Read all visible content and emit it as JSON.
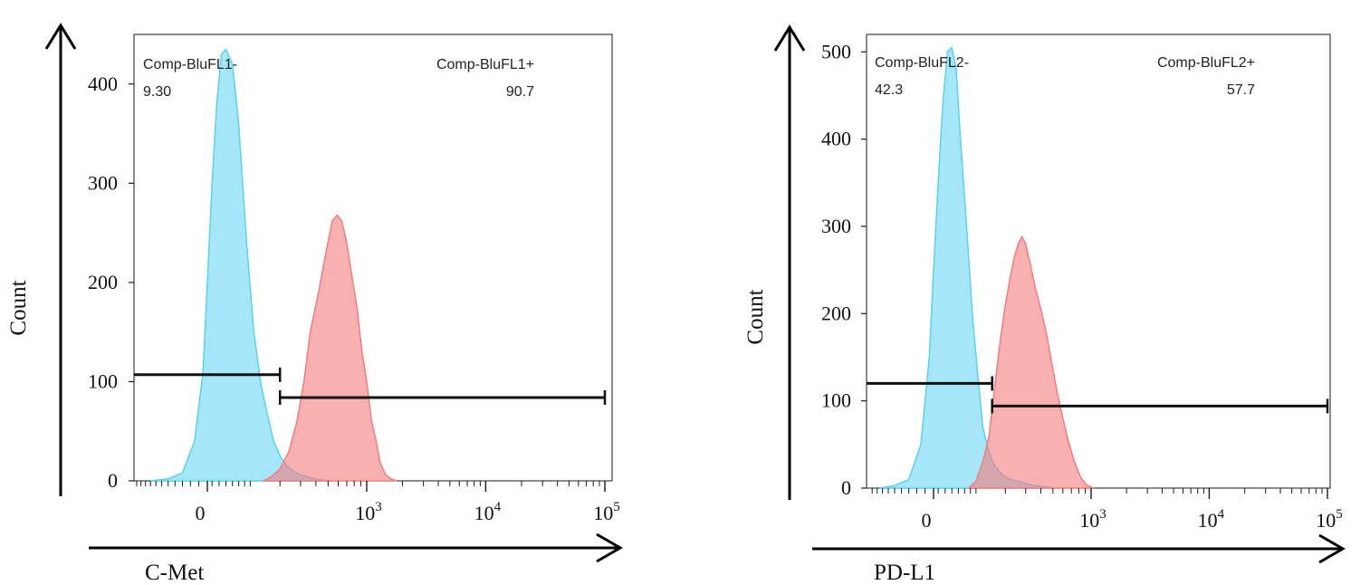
{
  "chart_data": [
    {
      "type": "area",
      "xscale": "biexponential",
      "xlabel": "C-Met",
      "ylabel": "Count",
      "ylim": [
        0,
        450
      ],
      "yticks": [
        0,
        100,
        200,
        300,
        400
      ],
      "xticks": [
        {
          "value": 0,
          "base": "0",
          "exp": ""
        },
        {
          "value": 1000,
          "base": "10",
          "exp": "3"
        },
        {
          "value": 10000,
          "base": "10",
          "exp": "4"
        },
        {
          "value": 100000,
          "base": "10",
          "exp": "5"
        }
      ],
      "series": [
        {
          "color": "#5bd1f2",
          "values": [
            [
              -160,
              0
            ],
            [
              -100,
              2
            ],
            [
              -60,
              8
            ],
            [
              -30,
              40
            ],
            [
              -10,
              110
            ],
            [
              0,
              200
            ],
            [
              10,
              300
            ],
            [
              20,
              380
            ],
            [
              30,
              430
            ],
            [
              40,
              435
            ],
            [
              55,
              420
            ],
            [
              70,
              360
            ],
            [
              90,
              240
            ],
            [
              110,
              150
            ],
            [
              130,
              100
            ],
            [
              150,
              70
            ],
            [
              175,
              40
            ],
            [
              200,
              25
            ],
            [
              230,
              15
            ],
            [
              260,
              10
            ],
            [
              300,
              6
            ],
            [
              360,
              3
            ],
            [
              420,
              1
            ],
            [
              520,
              0
            ]
          ]
        },
        {
          "color": "#f47c7c",
          "values": [
            [
              140,
              0
            ],
            [
              170,
              5
            ],
            [
              200,
              12
            ],
            [
              240,
              30
            ],
            [
              280,
              60
            ],
            [
              320,
              100
            ],
            [
              360,
              150
            ],
            [
              420,
              190
            ],
            [
              480,
              230
            ],
            [
              540,
              262
            ],
            [
              590,
              268
            ],
            [
              640,
              262
            ],
            [
              700,
              240
            ],
            [
              760,
              210
            ],
            [
              840,
              175
            ],
            [
              920,
              130
            ],
            [
              1000,
              100
            ],
            [
              1100,
              60
            ],
            [
              1200,
              40
            ],
            [
              1300,
              18
            ],
            [
              1450,
              6
            ],
            [
              1600,
              2
            ],
            [
              1800,
              0
            ]
          ]
        }
      ],
      "gates": [
        {
          "label": "Comp-BluFL1-",
          "value": "9.30",
          "from": -300,
          "to": 200,
          "y": 107
        },
        {
          "label": "Comp-BluFL1+",
          "value": "90.7",
          "from": 200,
          "to": 100000,
          "y": 84
        }
      ]
    },
    {
      "type": "area",
      "xscale": "biexponential",
      "xlabel": "PD-L1",
      "ylabel": "Count",
      "ylim": [
        0,
        520
      ],
      "yticks": [
        0,
        100,
        200,
        300,
        400,
        500
      ],
      "xticks": [
        {
          "value": 0,
          "base": "0",
          "exp": ""
        },
        {
          "value": 1000,
          "base": "10",
          "exp": "3"
        },
        {
          "value": 10000,
          "base": "10",
          "exp": "4"
        },
        {
          "value": 100000,
          "base": "10",
          "exp": "5"
        }
      ],
      "series": [
        {
          "color": "#5bd1f2",
          "values": [
            [
              -150,
              0
            ],
            [
              -100,
              3
            ],
            [
              -60,
              10
            ],
            [
              -30,
              50
            ],
            [
              -10,
              150
            ],
            [
              0,
              250
            ],
            [
              10,
              350
            ],
            [
              20,
              440
            ],
            [
              30,
              500
            ],
            [
              40,
              505
            ],
            [
              50,
              480
            ],
            [
              60,
              400
            ],
            [
              75,
              300
            ],
            [
              90,
              200
            ],
            [
              105,
              130
            ],
            [
              120,
              70
            ],
            [
              140,
              40
            ],
            [
              160,
              25
            ],
            [
              190,
              15
            ],
            [
              220,
              10
            ],
            [
              260,
              8
            ],
            [
              320,
              4
            ],
            [
              400,
              2
            ],
            [
              500,
              0
            ]
          ]
        },
        {
          "color": "#f47c7c",
          "values": [
            [
              80,
              0
            ],
            [
              100,
              8
            ],
            [
              120,
              30
            ],
            [
              140,
              60
            ],
            [
              160,
              120
            ],
            [
              180,
              170
            ],
            [
              200,
              210
            ],
            [
              220,
              240
            ],
            [
              240,
              265
            ],
            [
              260,
              280
            ],
            [
              280,
              288
            ],
            [
              300,
              280
            ],
            [
              330,
              255
            ],
            [
              360,
              230
            ],
            [
              400,
              205
            ],
            [
              440,
              180
            ],
            [
              480,
              150
            ],
            [
              540,
              110
            ],
            [
              600,
              80
            ],
            [
              660,
              55
            ],
            [
              740,
              30
            ],
            [
              830,
              12
            ],
            [
              930,
              3
            ],
            [
              1050,
              0
            ]
          ]
        }
      ],
      "gates": [
        {
          "label": "Comp-BluFL2-",
          "value": "42.3",
          "from": -300,
          "to": 150,
          "y": 120
        },
        {
          "label": "Comp-BluFL2+",
          "value": "57.7",
          "from": 150,
          "to": 100000,
          "y": 94
        }
      ]
    }
  ]
}
